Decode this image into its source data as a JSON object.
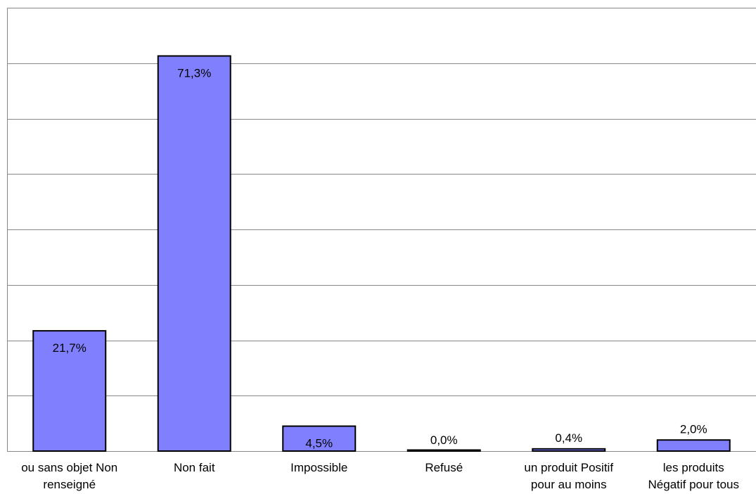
{
  "chart_data": {
    "type": "bar",
    "categories": [
      [
        "ou sans objet Non",
        "renseigné"
      ],
      [
        "Non fait"
      ],
      [
        "Impossible"
      ],
      [
        "Refusé"
      ],
      [
        "un produit Positif",
        "pour au moins"
      ],
      [
        "les produits",
        "Négatif pour tous"
      ]
    ],
    "values": [
      21.7,
      71.3,
      4.5,
      0.0,
      0.4,
      2.0
    ],
    "data_labels": [
      "21,7%",
      "71,3%",
      "4,5%",
      "0,0%",
      "0,4%",
      "2,0%"
    ],
    "ylim": [
      0,
      80
    ],
    "gridline_step": 10,
    "grid": true,
    "title": "",
    "xlabel": "",
    "ylabel": "",
    "colors": {
      "bar_fill": "#8080ff",
      "bar_stroke": "#000000",
      "gridline": "#888888"
    }
  }
}
